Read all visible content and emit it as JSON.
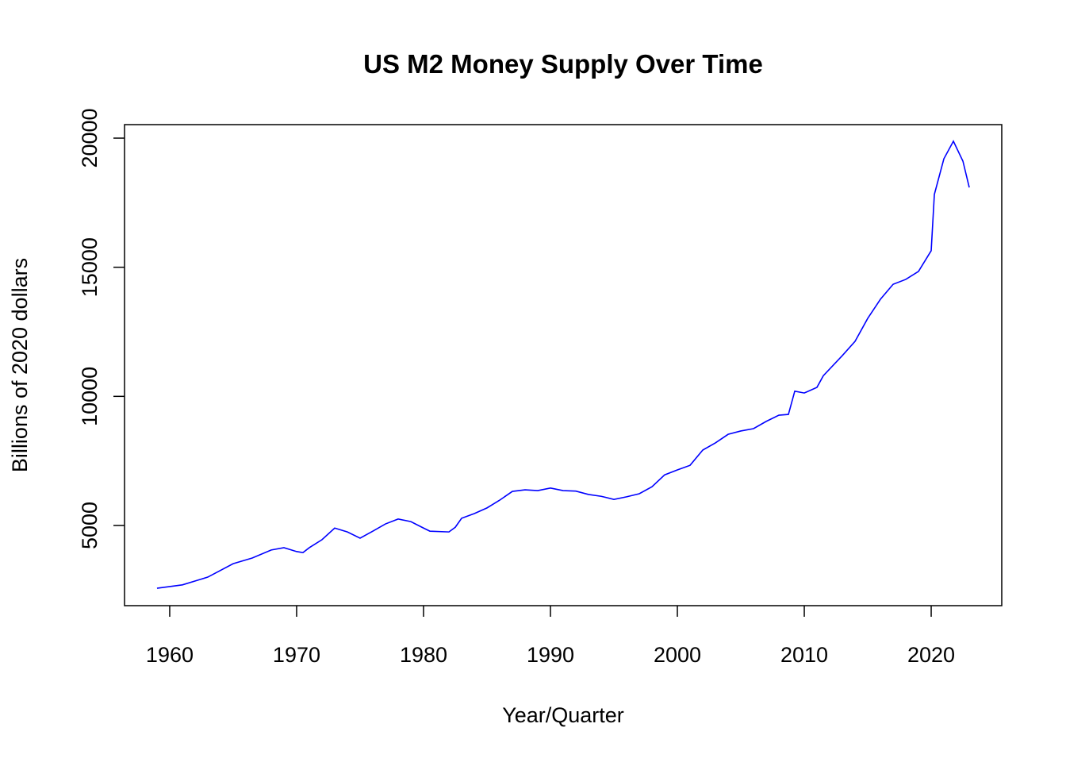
{
  "chart_data": {
    "type": "line",
    "title": "US M2 Money Supply Over Time",
    "x_label": "Year/Quarter",
    "y_label": "Billions of 2020 dollars",
    "x": [
      1959,
      1961,
      1963,
      1965,
      1966.5,
      1968,
      1969,
      1970,
      1970.5,
      1971,
      1972,
      1973,
      1974,
      1975,
      1976,
      1977,
      1978,
      1979,
      1980,
      1980.5,
      1982,
      1982.5,
      1983,
      1984,
      1985,
      1986,
      1987,
      1988,
      1989,
      1990,
      1991,
      1992,
      1993,
      1994,
      1995,
      1996,
      1997,
      1998,
      1999,
      2000,
      2001,
      2002,
      2003,
      2004,
      2005,
      2006,
      2007,
      2008,
      2008.75,
      2009.25,
      2010,
      2011,
      2011.5,
      2013,
      2014,
      2015,
      2016,
      2017,
      2018,
      2019,
      2020,
      2020.25,
      2021,
      2021.75,
      2022.5,
      2023
    ],
    "series": [
      {
        "name": "M2",
        "color": "#0000ff",
        "values": [
          2570,
          2700,
          3000,
          3520,
          3740,
          4050,
          4140,
          3990,
          3950,
          4140,
          4450,
          4900,
          4750,
          4510,
          4780,
          5060,
          5250,
          5150,
          4900,
          4780,
          4750,
          4930,
          5280,
          5460,
          5680,
          5980,
          6320,
          6380,
          6350,
          6450,
          6350,
          6330,
          6200,
          6130,
          6010,
          6110,
          6230,
          6500,
          6960,
          7150,
          7330,
          7920,
          8200,
          8530,
          8660,
          8750,
          9030,
          9270,
          9300,
          10200,
          10130,
          10350,
          10800,
          11580,
          12130,
          13020,
          13760,
          14340,
          14530,
          14840,
          15640,
          17820,
          19200,
          19880,
          19110,
          18090
        ]
      }
    ],
    "xlim": [
      1956.44,
      2025.56
    ],
    "xticks": [
      1960,
      1970,
      1980,
      1990,
      2000,
      2010,
      2020
    ],
    "ylim": [
      1895,
      20523
    ],
    "yticks": [
      5000,
      10000,
      15000,
      20000
    ]
  }
}
